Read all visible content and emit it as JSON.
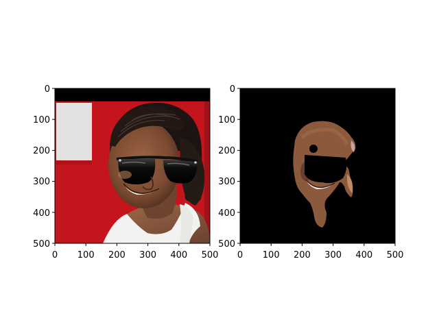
{
  "figure": {
    "background": "#ffffff",
    "panels": [
      {
        "name": "original-with-sunglasses",
        "description_hidden": true,
        "xticks": [
          "0",
          "100",
          "200",
          "300",
          "400",
          "500"
        ],
        "yticks": [
          "0",
          "100",
          "200",
          "300",
          "400",
          "500"
        ]
      },
      {
        "name": "segmented-skin-mask",
        "description_hidden": true,
        "xticks": [
          "0",
          "100",
          "200",
          "300",
          "400",
          "500"
        ],
        "yticks": [
          "0",
          "100",
          "200",
          "300",
          "400",
          "500"
        ]
      }
    ]
  },
  "colors": {
    "red_wall": "#c8141c",
    "skin": "#8b5a3c",
    "skin_dark": "#5a3624",
    "hair": "#1c1412",
    "lens": "#0a0a0a",
    "shirt": "#f2f2f0",
    "mask_background": "#000000"
  }
}
